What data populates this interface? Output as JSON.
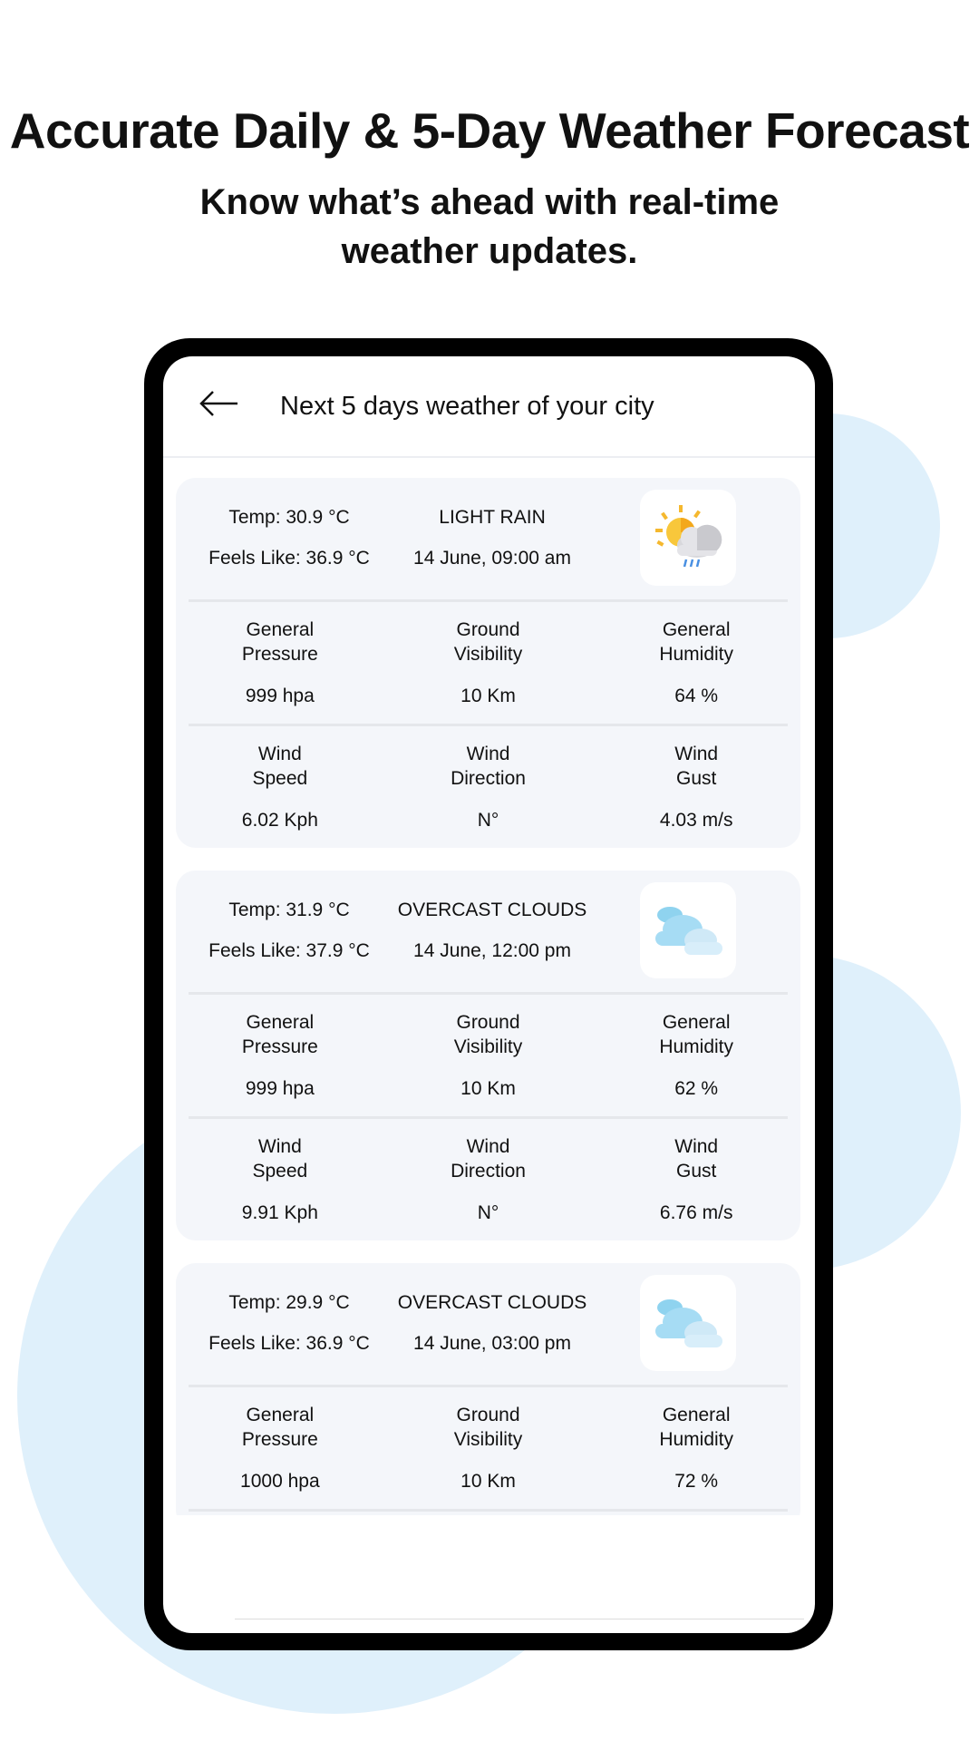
{
  "promo": {
    "title": "Accurate Daily & 5-Day Weather Forecast",
    "subtitle_line1": "Know what’s ahead with real-time",
    "subtitle_line2": "weather updates."
  },
  "appbar": {
    "back_icon": "arrow-left-icon",
    "title": "Next 5 days weather of your city"
  },
  "labels": {
    "pressure": [
      "General",
      "Pressure"
    ],
    "visibility": [
      "Ground",
      "Visibility"
    ],
    "humidity": [
      "General",
      "Humidity"
    ],
    "wind_speed": [
      "Wind",
      "Speed"
    ],
    "wind_direction": [
      "Wind",
      "Direction"
    ],
    "wind_gust": [
      "Wind",
      "Gust"
    ]
  },
  "forecasts": [
    {
      "temp": "Temp: 30.9 °C",
      "feels": "Feels Like: 36.9 °C",
      "condition": "LIGHT RAIN",
      "datetime": "14 June, 09:00 am",
      "icon": "sun-cloud-rain-icon",
      "pressure": "999 hpa",
      "visibility": "10 Km",
      "humidity": "64 %",
      "wind_speed": "6.02 Kph",
      "wind_direction": "N°",
      "wind_gust": "4.03 m/s"
    },
    {
      "temp": "Temp: 31.9 °C",
      "feels": "Feels Like: 37.9 °C",
      "condition": "OVERCAST CLOUDS",
      "datetime": "14 June, 12:00 pm",
      "icon": "clouds-icon",
      "pressure": "999 hpa",
      "visibility": "10 Km",
      "humidity": "62 %",
      "wind_speed": "9.91 Kph",
      "wind_direction": "N°",
      "wind_gust": "6.76 m/s"
    },
    {
      "temp": "Temp: 29.9 °C",
      "feels": "Feels Like: 36.9 °C",
      "condition": "OVERCAST CLOUDS",
      "datetime": "14 June, 03:00 pm",
      "icon": "clouds-icon",
      "pressure": "1000 hpa",
      "visibility": "10 Km",
      "humidity": "72 %"
    }
  ],
  "colors": {
    "bubble": "#dff0fb",
    "card": "#f4f6fa"
  }
}
